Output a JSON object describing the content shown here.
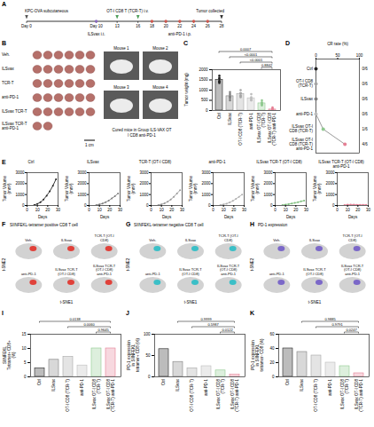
{
  "figure": {
    "timeline": {
      "letter": "A",
      "ticks": [
        {
          "value": 0,
          "label": "Day 0"
        },
        {
          "value": 10,
          "label": "Day 10"
        },
        13,
        16,
        18,
        20,
        22,
        24,
        26,
        28
      ],
      "events": [
        {
          "label": "KPC-OVA subcutaneous",
          "days": [
            0
          ],
          "side": "above"
        },
        {
          "label": "ILSvax i.t.",
          "days": [
            10
          ],
          "side": "below"
        },
        {
          "label": "OT-I CD8 T (TCR-T) i.v.",
          "days": [
            13,
            16
          ],
          "side": "above"
        },
        {
          "label": "anti-PD-1 i.p.",
          "days": [
            18,
            20,
            22,
            24,
            26
          ],
          "side": "below"
        },
        {
          "label": "Tumor collected",
          "days": [
            28
          ],
          "side": "above"
        }
      ]
    },
    "photos": {
      "letter": "B",
      "groups": [
        "Veh.",
        "ILSvax",
        "TCR-T",
        "anti-PD-1",
        "ILSvax TCR-T",
        "ILSvax TCR-T anti-PD-1"
      ],
      "tumor_counts": [
        6,
        6,
        6,
        6,
        6,
        2
      ],
      "scale_bar": "1 cm",
      "mice": [
        "Mouse 1",
        "Mouse 2",
        "Mouse 3",
        "Mouse 4"
      ],
      "caption": "Cured mice in Group ILS-VAX OT I CD8 anti-PD-1"
    },
    "tsne": [
      {
        "letter": "F",
        "title": "SIINFEKL-tetramer positive CD8 T cell",
        "groups": [
          "Veh.",
          "ILSvax",
          "TCR-T (OT-I CD8)",
          "anti-PD-1",
          "ILSvax TCR-T (OT-I CD8)",
          "ILSvax TCR-T (OT-I CD8) anti-PD-1"
        ],
        "xlabel": "t-SNE1",
        "ylabel": "t-SNE2",
        "color": "#e0413a"
      },
      {
        "letter": "G",
        "title": "SIINFEKL-tetramer negative CD8 T cell",
        "groups": [
          "Veh.",
          "ILSvax",
          "TCR-T (OT-I CD8)",
          "anti-PD-1",
          "ILSvax TCR-T (OT-I CD8)",
          "ILSvax TCR-T (OT-I CD8) anti-PD-1"
        ],
        "xlabel": "t-SNE1",
        "ylabel": "t-SNE2",
        "color": "#3bbfc7"
      },
      {
        "letter": "H",
        "title": "PD-1 expression",
        "groups": [
          "Veh.",
          "ILSvax",
          "TCR-T (OT-I CD8)",
          "anti-PD-1",
          "ILSvax TCR-T (OT-I CD8)",
          "ILSvax TCR-T (OT-I CD8) anti-PD-1"
        ],
        "xlabel": "t-SNE1",
        "ylabel": "t-SNE2",
        "color": "#7b68c8"
      }
    ]
  },
  "chart_data": [
    {
      "type": "bar",
      "letter": "C",
      "ylabel": "Tumor weight (mg)",
      "categories": [
        "Ctrl",
        "ILSvax",
        "OT-I CD8 (TCR-T)",
        "anti-PD-1",
        "ILSvax OT-I CD8 (TCR-T)",
        "ILSvax OT-I CD8 (TCR-T) anti-PD-1"
      ],
      "values": [
        1500,
        700,
        800,
        600,
        350,
        50
      ],
      "points": [
        [
          1700,
          1550,
          1400,
          1350,
          1600,
          1450
        ],
        [
          900,
          700,
          650,
          500,
          800,
          600
        ],
        [
          1000,
          850,
          700,
          750,
          650,
          850
        ],
        [
          800,
          600,
          500,
          550,
          650,
          500
        ],
        [
          500,
          400,
          300,
          250,
          350,
          300
        ],
        [
          150,
          0,
          0,
          0,
          100,
          50
        ]
      ],
      "colors": [
        "#222222",
        "#7f7f7f",
        "#a6a6a6",
        "#bdbdbd",
        "#8fc98f",
        "#e57f94"
      ],
      "ylim": [
        0,
        2000
      ],
      "yticks": [
        0,
        500,
        1000,
        1500,
        2000
      ],
      "comparisons": [
        {
          "groups": [
            4,
            5
          ],
          "label": "0.8842"
        },
        {
          "groups": [
            2,
            5
          ],
          "label": "<0.0001"
        },
        {
          "groups": [
            1,
            5
          ],
          "label": "<0.0001"
        },
        {
          "groups": [
            0,
            5
          ],
          "label": "0.0007"
        }
      ]
    },
    {
      "type": "dot",
      "letter": "D",
      "xlabel": "CR rate (%)",
      "categories": [
        "Ctrl",
        "OT-I CD8 (TCR-T)",
        "ILSvax",
        "anti-PD-1",
        "ILSvax OT-I CD8 (TCR-T)",
        "ILSvax OT-I CD8 (TCR-T) anti-PD-1"
      ],
      "values": [
        0,
        0,
        0,
        0,
        16.7,
        66.7
      ],
      "value_labels": [
        "0/6",
        "0/6",
        "0/6",
        "0/6",
        "1/6",
        "4/6"
      ],
      "data_labels": true,
      "colors": [
        "#222222",
        "#a6a6a6",
        "#7f7f7f",
        "#bdbdbd",
        "#8fc98f",
        "#e57f94"
      ],
      "xlim": [
        0,
        100
      ],
      "xticks": [
        0,
        50,
        100
      ]
    },
    {
      "type": "line",
      "letter": "E",
      "title": "Ctrl",
      "xlabel": "Days",
      "ylabel": "Tumor Volume (mm³)",
      "x": [
        7,
        10,
        13,
        16,
        19,
        22,
        25,
        28
      ],
      "values": [
        50,
        150,
        300,
        550,
        900,
        1300,
        1800,
        2400
      ],
      "color": "#222222",
      "xlim": [
        0,
        30
      ],
      "xticks": [
        0,
        10,
        20,
        30
      ],
      "ylim": [
        0,
        3000
      ],
      "yticks": [
        0,
        1000,
        2000,
        3000
      ]
    },
    {
      "type": "line",
      "title": "ILSvax",
      "xlabel": "Days",
      "ylabel": "Tumor Volume (mm³)",
      "x": [
        7,
        10,
        13,
        16,
        19,
        22,
        25,
        28
      ],
      "values": [
        40,
        100,
        180,
        300,
        450,
        650,
        850,
        1100
      ],
      "color": "#7f7f7f",
      "xlim": [
        0,
        30
      ],
      "xticks": [
        0,
        10,
        20,
        30
      ],
      "ylim": [
        0,
        3000
      ],
      "yticks": [
        0,
        1000,
        2000,
        3000
      ]
    },
    {
      "type": "line",
      "title": "TCR-T (OT-I CD8)",
      "xlabel": "Days",
      "ylabel": "Tumor Volume (mm³)",
      "x": [
        7,
        10,
        13,
        16,
        19,
        22,
        25,
        28
      ],
      "values": [
        40,
        110,
        200,
        350,
        550,
        800,
        1100,
        1400
      ],
      "color": "#999999",
      "xlim": [
        0,
        30
      ],
      "xticks": [
        0,
        10,
        20,
        30
      ],
      "ylim": [
        0,
        3000
      ],
      "yticks": [
        0,
        1000,
        2000,
        3000
      ]
    },
    {
      "type": "line",
      "title": "anti-PD-1",
      "xlabel": "Days",
      "ylabel": "Tumor Volume (mm³)",
      "x": [
        7,
        10,
        13,
        16,
        19,
        22,
        25,
        28
      ],
      "values": [
        40,
        100,
        170,
        280,
        420,
        600,
        800,
        1000
      ],
      "color": "#b0b0b0",
      "xlim": [
        0,
        30
      ],
      "xticks": [
        0,
        10,
        20,
        30
      ],
      "ylim": [
        0,
        3000
      ],
      "yticks": [
        0,
        1000,
        2000,
        3000
      ]
    },
    {
      "type": "line",
      "title": "ILSvax TCR-T (OT-I CD8)",
      "xlabel": "Days",
      "ylabel": "Tumor Volume (mm³)",
      "x": [
        7,
        10,
        13,
        16,
        19,
        22,
        25,
        28
      ],
      "values": [
        40,
        90,
        130,
        180,
        240,
        300,
        380,
        450
      ],
      "color": "#7fbf7f",
      "xlim": [
        0,
        30
      ],
      "xticks": [
        0,
        10,
        20,
        30
      ],
      "ylim": [
        0,
        3000
      ],
      "yticks": [
        0,
        1000,
        2000,
        3000
      ]
    },
    {
      "type": "line",
      "title": "ILSvax TCR-T (OT-I CD8) anti-PD-1",
      "xlabel": "Days",
      "ylabel": "Tumor Volume (mm³)",
      "x": [
        7,
        10,
        13,
        16,
        19,
        22,
        25,
        28
      ],
      "values": [
        40,
        80,
        90,
        80,
        70,
        60,
        60,
        60
      ],
      "color": "#e57f94",
      "xlim": [
        0,
        30
      ],
      "xticks": [
        0,
        10,
        20,
        30
      ],
      "ylim": [
        0,
        3000
      ],
      "yticks": [
        0,
        1000,
        2000,
        3000
      ]
    },
    {
      "type": "bar",
      "letter": "I",
      "ylabel": "SIINFEKL Tetramer+ CD8+ (%)",
      "categories": [
        "Ctrl",
        "ILSvax",
        "OT-I CD8 (TCR-T)",
        "anti-PD-1",
        "ILSvax OT-I CD8 (TCR-T)",
        "ILSvax OT-I CD8 (TCR-T) anti-PD-1"
      ],
      "values": [
        3,
        6,
        7,
        4,
        10,
        10
      ],
      "colors": [
        "#222222",
        "#7f7f7f",
        "#a6a6a6",
        "#bdbdbd",
        "#8fc98f",
        "#e57f94"
      ],
      "ylim": [
        0,
        15
      ],
      "yticks": [
        0,
        5,
        10,
        15
      ],
      "comparisons": [
        {
          "groups": [
            4,
            5
          ],
          "label": "0.9645"
        },
        {
          "groups": [
            2,
            5
          ],
          "label": "0.0060"
        },
        {
          "groups": [
            0,
            5
          ],
          "label": "0.0138"
        }
      ]
    },
    {
      "type": "bar",
      "letter": "J",
      "ylabel": "PD-1 expression in SIINFEKL tetramer+ CD8 (%)",
      "categories": [
        "Ctrl",
        "ILSvax",
        "OT-I CD8 (TCR-T)",
        "anti-PD-1",
        "ILSvax OT-I CD8 (TCR-T)",
        "ILSvax OT-I CD8 (TCR-T) anti-PD-1"
      ],
      "values": [
        65,
        35,
        20,
        25,
        15,
        5
      ],
      "colors": [
        "#222222",
        "#7f7f7f",
        "#a6a6a6",
        "#bdbdbd",
        "#8fc98f",
        "#e57f94"
      ],
      "ylim": [
        0,
        100
      ],
      "yticks": [
        0,
        50,
        100
      ],
      "comparisons": [
        {
          "groups": [
            4,
            5
          ],
          "label": "0.0122"
        },
        {
          "groups": [
            2,
            5
          ],
          "label": "0.5987"
        },
        {
          "groups": [
            1,
            5
          ],
          "label": "0.9999"
        }
      ]
    },
    {
      "type": "bar",
      "letter": "K",
      "ylabel": "PD-1 expression in SIINFEKL tetramer- CD8 (%)",
      "categories": [
        "Ctrl",
        "ILSvax",
        "OT-I CD8 (TCR-T)",
        "anti-PD-1",
        "ILSvax OT-I CD8 (TCR-T)",
        "ILSvax OT-I CD8 (TCR-T) anti-PD-1"
      ],
      "values": [
        40,
        35,
        30,
        20,
        15,
        5
      ],
      "colors": [
        "#222222",
        "#7f7f7f",
        "#a6a6a6",
        "#bdbdbd",
        "#8fc98f",
        "#e57f94"
      ],
      "ylim": [
        0,
        60
      ],
      "yticks": [
        0,
        20,
        40,
        60
      ],
      "comparisons": [
        {
          "groups": [
            4,
            5
          ],
          "label": "0.0247"
        },
        {
          "groups": [
            2,
            5
          ],
          "label": "0.9791"
        },
        {
          "groups": [
            1,
            5
          ],
          "label": "0.9885"
        }
      ]
    }
  ]
}
